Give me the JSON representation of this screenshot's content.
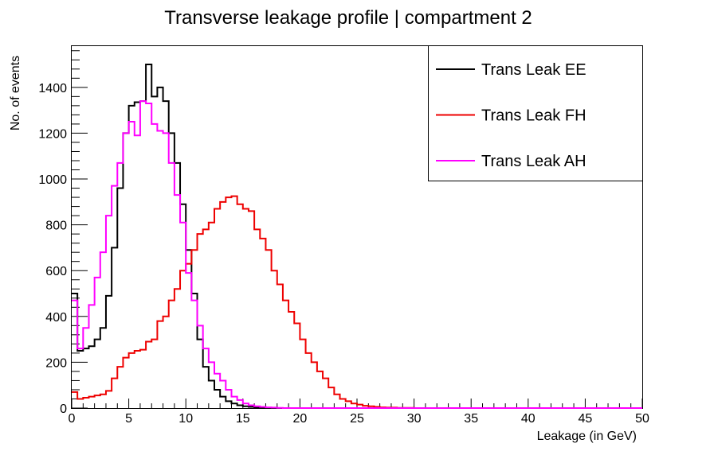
{
  "chart_data": {
    "type": "histogram-step",
    "title": "Transverse leakage profile | compartment 2",
    "xlabel": "Leakage (in GeV)",
    "ylabel": "No. of events",
    "xlim": [
      0,
      50
    ],
    "ylim": [
      0,
      1580
    ],
    "bin_width": 0.5,
    "x_ticks": [
      0,
      5,
      10,
      15,
      20,
      25,
      30,
      35,
      40,
      45,
      50
    ],
    "y_ticks": [
      0,
      200,
      400,
      600,
      800,
      1000,
      1200,
      1400
    ],
    "legend_position": "top-right",
    "series": [
      {
        "name": "Trans Leak EE",
        "color": "#000000",
        "values": [
          500,
          250,
          260,
          270,
          300,
          350,
          490,
          700,
          960,
          1200,
          1320,
          1335,
          1340,
          1500,
          1360,
          1400,
          1340,
          1200,
          1070,
          890,
          690,
          500,
          300,
          180,
          120,
          80,
          50,
          30,
          20,
          12,
          8,
          5,
          3,
          2,
          1,
          1,
          0,
          0,
          0,
          0,
          0,
          0,
          0,
          0,
          0,
          0,
          0,
          0,
          0,
          0,
          0,
          0,
          0,
          0,
          0,
          0,
          0,
          0,
          0,
          0,
          0,
          0,
          0,
          0,
          0,
          0,
          0,
          0,
          0,
          0,
          0,
          0,
          0,
          0,
          0,
          0,
          0,
          0,
          0,
          0,
          0,
          0,
          0,
          0,
          0,
          0,
          0,
          0,
          0,
          0,
          0,
          0,
          0,
          0,
          0,
          0,
          0,
          0,
          0,
          0
        ]
      },
      {
        "name": "Trans Leak FH",
        "color": "#ee0000",
        "values": [
          70,
          40,
          45,
          50,
          55,
          60,
          75,
          130,
          180,
          220,
          240,
          250,
          255,
          290,
          300,
          380,
          400,
          470,
          520,
          600,
          630,
          690,
          760,
          780,
          810,
          870,
          900,
          920,
          925,
          890,
          870,
          860,
          780,
          740,
          690,
          600,
          540,
          470,
          420,
          370,
          300,
          240,
          200,
          160,
          130,
          90,
          60,
          40,
          30,
          20,
          15,
          10,
          8,
          5,
          3,
          2,
          2,
          1,
          1,
          1,
          0,
          0,
          0,
          0,
          0,
          0,
          0,
          0,
          0,
          0,
          0,
          0,
          0,
          0,
          0,
          0,
          0,
          0,
          0,
          0,
          0,
          0,
          0,
          0,
          0,
          0,
          0,
          0,
          0,
          0,
          0,
          0,
          0,
          0,
          0,
          0,
          0,
          0,
          0,
          0
        ]
      },
      {
        "name": "Trans Leak AH",
        "color": "#ff00ff",
        "values": [
          470,
          260,
          350,
          450,
          570,
          680,
          840,
          970,
          1070,
          1200,
          1250,
          1190,
          1340,
          1330,
          1240,
          1210,
          1200,
          1070,
          930,
          810,
          590,
          470,
          360,
          260,
          200,
          150,
          120,
          80,
          50,
          35,
          20,
          12,
          8,
          5,
          3,
          2,
          1,
          0,
          0,
          0,
          0,
          0,
          0,
          0,
          0,
          0,
          0,
          0,
          0,
          0,
          0,
          0,
          0,
          0,
          0,
          0,
          0,
          0,
          0,
          0,
          0,
          0,
          0,
          0,
          0,
          0,
          0,
          0,
          0,
          0,
          0,
          0,
          0,
          0,
          0,
          0,
          0,
          0,
          0,
          0,
          0,
          0,
          0,
          0,
          0,
          0,
          0,
          0,
          0,
          0,
          0,
          0,
          0,
          0,
          0,
          0,
          0,
          0,
          0,
          0
        ]
      }
    ]
  }
}
